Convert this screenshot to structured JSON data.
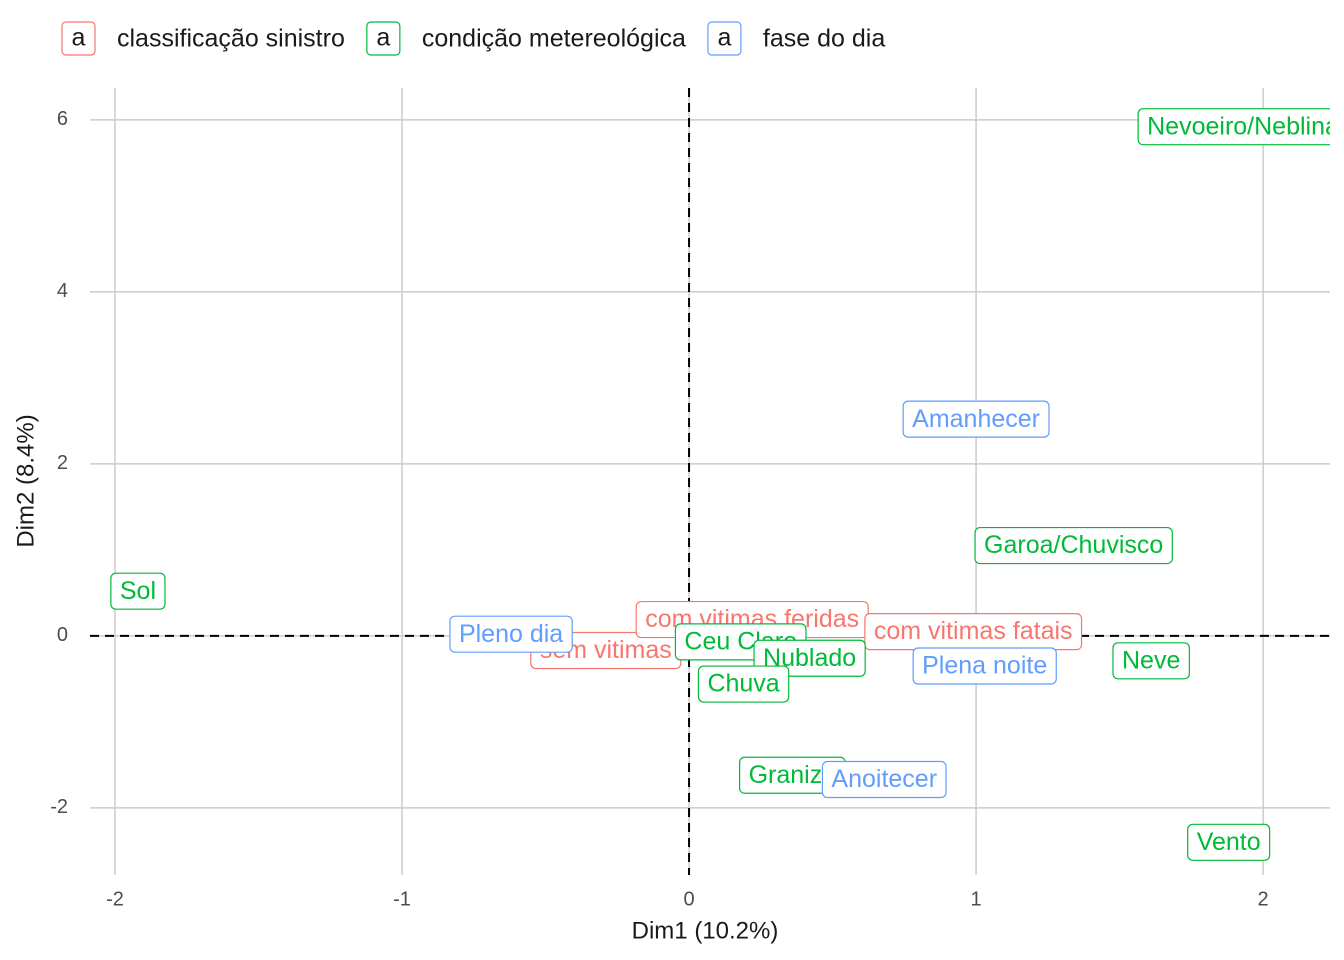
{
  "chart_data": {
    "type": "scatter",
    "xlabel": "Dim1 (10.2%)",
    "ylabel": "Dim2 (8.4%)",
    "xlim": [
      -2.087,
      2.233
    ],
    "ylim": [
      -2.78,
      6.37
    ],
    "xticks": [
      -2,
      -1,
      0,
      1,
      2
    ],
    "yticks": [
      -2,
      0,
      2,
      4,
      6
    ],
    "grid": true,
    "legend": "top",
    "series": [
      {
        "name": "classificação sinistro",
        "color": "#F8766D",
        "labels": [
          "sem vitimas",
          "com vitimas feridas",
          "com vitimas fatais"
        ],
        "x": [
          -0.29,
          0.22,
          0.99
        ],
        "y": [
          -0.17,
          0.19,
          0.05
        ]
      },
      {
        "name": "condição metereológica",
        "color": "#00BA38",
        "labels": [
          "Nevoeiro/Neblina",
          "Garoa/Chuvisco",
          "Sol",
          "Ceu Claro",
          "Nublado",
          "Neve",
          "Chuva",
          "Granizo",
          "Vento"
        ],
        "x": [
          1.93,
          1.34,
          -1.92,
          0.18,
          0.42,
          1.61,
          0.19,
          0.36,
          1.88
        ],
        "y": [
          5.92,
          1.05,
          0.52,
          -0.07,
          -0.26,
          -0.29,
          -0.56,
          -1.62,
          -2.4
        ]
      },
      {
        "name": "fase do dia",
        "color": "#619CFF",
        "labels": [
          "Amanhecer",
          "Pleno dia",
          "Plena noite",
          "Anoitecer"
        ],
        "x": [
          1.0,
          -0.62,
          1.03,
          0.68
        ],
        "y": [
          2.52,
          0.02,
          -0.35,
          -1.67
        ]
      }
    ]
  }
}
